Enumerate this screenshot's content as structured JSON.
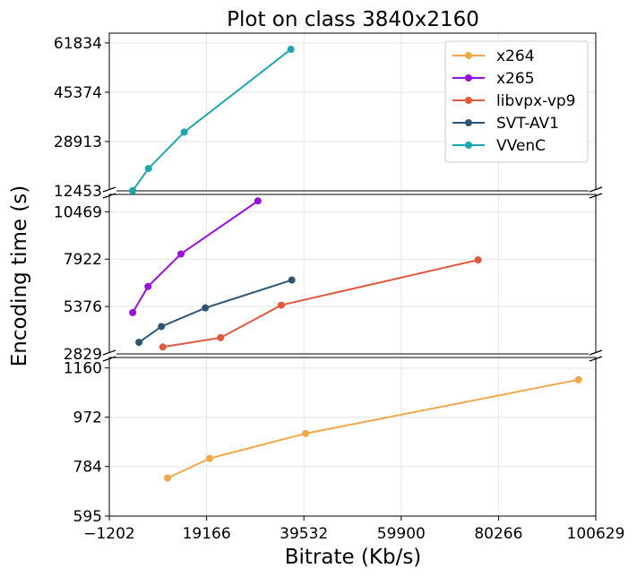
{
  "chart_data": {
    "type": "line",
    "title": "Plot on class 3840x2160",
    "xlabel": "Bitrate (Kb/s)",
    "ylabel": "Encoding time (s)",
    "xlim": [
      -1202,
      100629
    ],
    "x_ticks": [
      -1202,
      19166,
      39532,
      59900,
      80266,
      100629
    ],
    "x_tick_labels": [
      "−1202",
      "19166",
      "39532",
      "59900",
      "80266",
      "100629"
    ],
    "panels": [
      {
        "ylim": [
          12453,
          65100
        ],
        "y_ticks": [
          12453,
          28913,
          45374,
          61834
        ],
        "y_tick_labels": [
          "12453",
          "28913",
          "45374",
          "61834"
        ]
      },
      {
        "ylim": [
          2829,
          11400
        ],
        "y_ticks": [
          2829,
          5376,
          7922,
          10469
        ],
        "y_tick_labels": [
          "2829",
          "5376",
          "7922",
          "10469"
        ]
      },
      {
        "ylim": [
          595,
          1200
        ],
        "y_ticks": [
          595,
          784,
          972,
          1160
        ],
        "y_tick_labels": [
          "595",
          "784",
          "972",
          "1160"
        ]
      }
    ],
    "grid": true,
    "legend_position": "top-right",
    "series": [
      {
        "name": "x264",
        "color": "#f0a848",
        "panel": 2,
        "x": [
          11000,
          19800,
          39900,
          97000
        ],
        "y": [
          740,
          815,
          910,
          1115
        ]
      },
      {
        "name": "x265",
        "color": "#9b10dc",
        "panel": 1,
        "x": [
          3700,
          6900,
          13800,
          29900
        ],
        "y": [
          5050,
          6450,
          8200,
          11050
        ]
      },
      {
        "name": "libvpx-vp9",
        "color": "#e05a40",
        "panel": 1,
        "x": [
          10000,
          22100,
          34800,
          76000
        ],
        "y": [
          3200,
          3700,
          5450,
          7880
        ]
      },
      {
        "name": "SVT-AV1",
        "color": "#2d5577",
        "panel": 1,
        "x": [
          5000,
          9700,
          18900,
          37000
        ],
        "y": [
          3450,
          4300,
          5300,
          6800
        ]
      },
      {
        "name": "VVenC",
        "color": "#1aa7b1",
        "panel": 0,
        "x": [
          3700,
          7000,
          14500,
          36800
        ],
        "y": [
          12500,
          19900,
          32100,
          59700
        ]
      }
    ]
  }
}
